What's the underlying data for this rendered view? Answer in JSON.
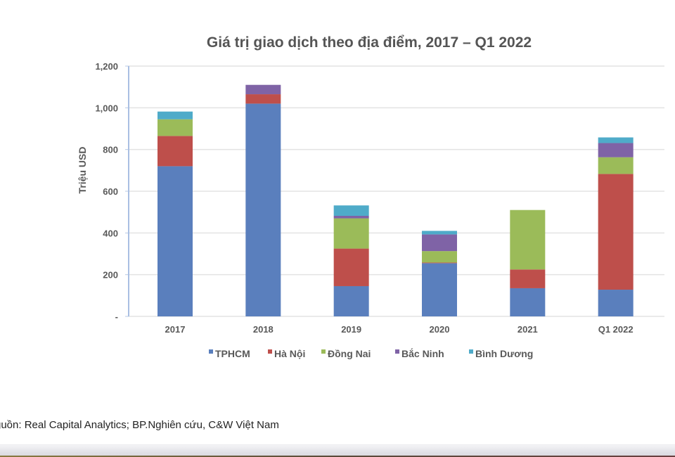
{
  "chart_data": {
    "type": "bar",
    "stacked": true,
    "title": "Giá trị giao dịch theo địa điểm, 2017 – Q1 2022",
    "xlabel": "",
    "ylabel": "Triệu USD",
    "ylim": [
      0,
      1200
    ],
    "yticks": [
      0,
      200,
      400,
      600,
      800,
      1000,
      1200
    ],
    "ytick_labels": [
      "-",
      "200",
      "400",
      "600",
      "800",
      "1,000",
      "1,200"
    ],
    "grid": true,
    "legend_position": "bottom",
    "categories": [
      "2017",
      "2018",
      "2019",
      "2020",
      "2021",
      "Q1 2022"
    ],
    "series": [
      {
        "name": "TPHCM",
        "color": "#5a7fbd",
        "values": [
          720,
          1020,
          145,
          255,
          135,
          128
        ]
      },
      {
        "name": "Hà Nội",
        "color": "#be4f4b",
        "values": [
          145,
          45,
          180,
          3,
          90,
          555
        ]
      },
      {
        "name": "Đồng Nai",
        "color": "#9bbb59",
        "values": [
          80,
          0,
          145,
          55,
          285,
          80
        ]
      },
      {
        "name": "Bắc Ninh",
        "color": "#7f63a6",
        "values": [
          0,
          45,
          12,
          80,
          0,
          68
        ]
      },
      {
        "name": "Bình Dương",
        "color": "#4fabc9",
        "values": [
          37,
          0,
          50,
          17,
          0,
          27
        ]
      }
    ]
  },
  "source": "guồn: Real Capital Analytics; BP.Nghiên cứu, C&W Việt Nam"
}
